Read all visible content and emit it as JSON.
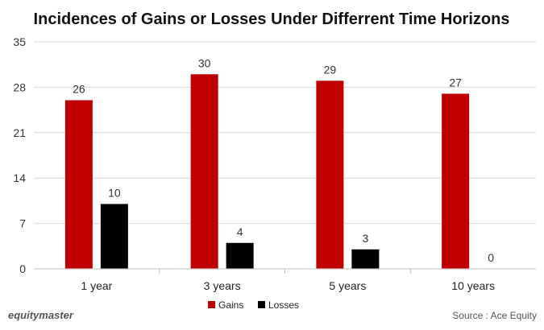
{
  "brand": "equitymaster",
  "source": "Source : Ace Equity",
  "colors": {
    "gains": "#c00000",
    "losses": "#000000"
  },
  "chart_data": {
    "type": "bar",
    "title": "Incidences of Gains or Losses Under Differrent Time Horizons",
    "xlabel": "",
    "ylabel": "",
    "categories": [
      "1 year",
      "3 years",
      "5 years",
      "10 years"
    ],
    "series": [
      {
        "name": "Gains",
        "values": [
          26,
          30,
          29,
          27
        ]
      },
      {
        "name": "Losses",
        "values": [
          10,
          4,
          3,
          0
        ]
      }
    ],
    "ylim": [
      0,
      35
    ],
    "yticks": [
      0,
      7,
      14,
      21,
      28,
      35
    ],
    "grid": true,
    "legend": "bottom-center"
  }
}
